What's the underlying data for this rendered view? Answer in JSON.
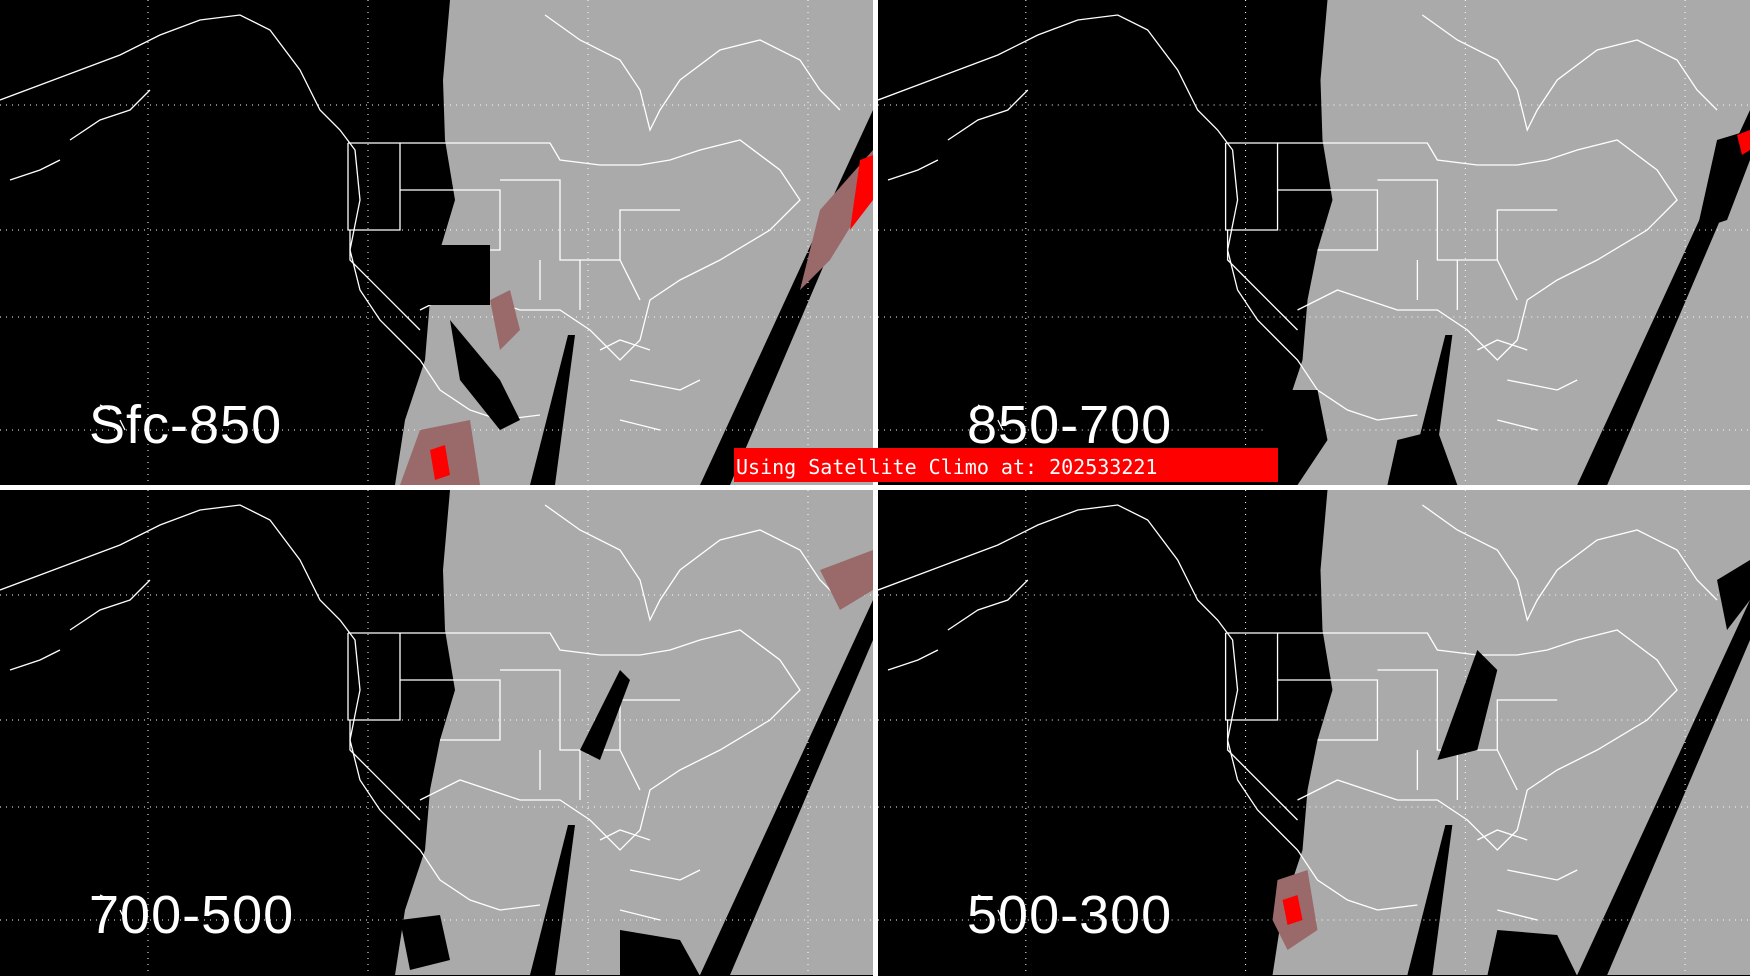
{
  "banner": {
    "text": "Using Satellite Climo at: 202533221"
  },
  "panels": [
    {
      "label": "Sfc-850"
    },
    {
      "label": "850-700"
    },
    {
      "label": "700-500"
    },
    {
      "label": "500-300"
    }
  ],
  "colors": {
    "background": "#000000",
    "satellite_coverage": "#aaaaaa",
    "coastline": "#ffffff",
    "highlight": "#ff0000",
    "highlight_faded": "#9a6a6a",
    "divider": "#ffffff"
  }
}
